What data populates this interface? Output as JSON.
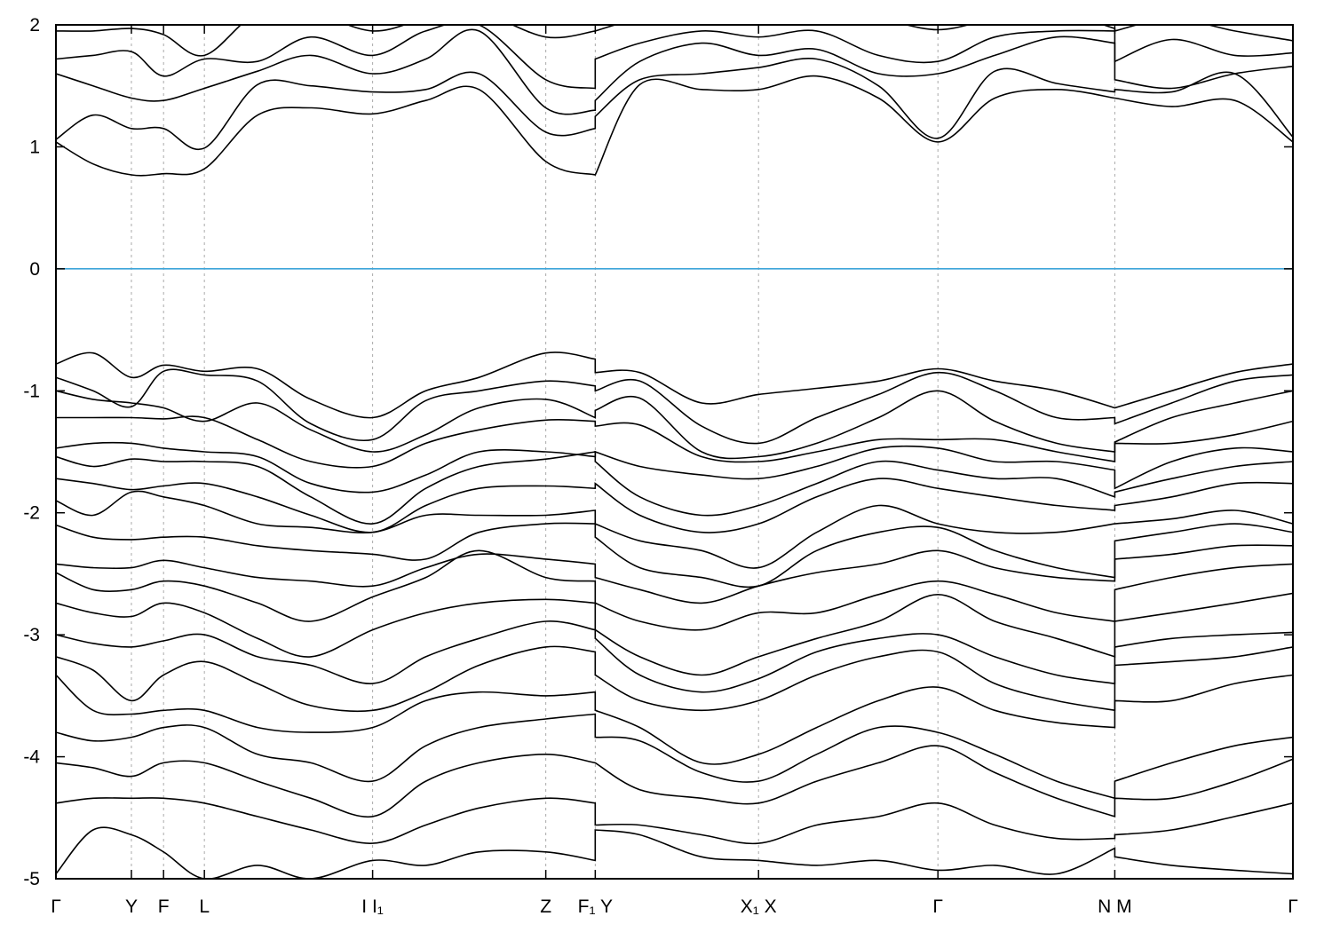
{
  "chart_data": {
    "type": "line",
    "title": "",
    "xlabel": "",
    "ylabel": "",
    "xlim": [
      0,
      1
    ],
    "ylim": [
      -5,
      2
    ],
    "yticks": [
      2,
      1,
      0,
      -1,
      -2,
      -3,
      -4,
      -5
    ],
    "ytick_labels": [
      "2",
      "1",
      "0",
      "-1",
      "-2",
      "-3",
      "-4",
      "-5"
    ],
    "xticks": [
      {
        "k": 0,
        "label": "Γ"
      },
      {
        "k": 0.061,
        "label": "Y"
      },
      {
        "k": 0.087,
        "label": "F"
      },
      {
        "k": 0.12,
        "label": "L"
      },
      {
        "k": 0.256,
        "label": "I I₁"
      },
      {
        "k": 0.396,
        "label": "Z"
      },
      {
        "k": 0.436,
        "label": "F₁ Y"
      },
      {
        "k": 0.568,
        "label": "X₁ X"
      },
      {
        "k": 0.713,
        "label": "Γ"
      },
      {
        "k": 0.856,
        "label": "N M"
      },
      {
        "k": 1,
        "label": "Γ"
      }
    ],
    "grid": "vertical dashed at high-symmetry points",
    "fermi_level": 0,
    "fermi_color": "#3da5d9",
    "band_color": "#000000",
    "k": [
      0,
      0.03,
      0.061,
      0.087,
      0.12,
      0.163,
      0.206,
      0.256,
      0.299,
      0.342,
      0.396,
      0.436,
      0.436,
      0.472,
      0.522,
      0.568,
      0.615,
      0.665,
      0.713,
      0.759,
      0.809,
      0.856,
      0.856,
      0.902,
      0.953,
      1
    ],
    "bands": [
      {
        "E": [
          1.04,
          0.86,
          0.77,
          0.78,
          0.82,
          1.26,
          1.32,
          1.27,
          1.38,
          1.47,
          0.88,
          0.77,
          0.77,
          1.51,
          1.47,
          1.47,
          1.58,
          1.4,
          1.04,
          1.4,
          1.47,
          1.4,
          1.4,
          1.33,
          1.38,
          1.04
        ]
      },
      {
        "E": [
          1.06,
          1.26,
          1.15,
          1.15,
          0.99,
          1.51,
          1.5,
          1.45,
          1.47,
          1.6,
          1.12,
          1.15,
          1.25,
          1.55,
          1.6,
          1.65,
          1.72,
          1.5,
          1.07,
          1.62,
          1.52,
          1.45,
          1.47,
          1.45,
          1.6,
          1.08
        ]
      },
      {
        "E": [
          1.6,
          1.5,
          1.4,
          1.38,
          1.48,
          1.62,
          1.75,
          1.6,
          1.72,
          1.95,
          1.32,
          1.3,
          1.38,
          1.7,
          1.85,
          1.75,
          1.8,
          1.6,
          1.6,
          1.75,
          1.9,
          1.85,
          1.55,
          1.48,
          1.6,
          1.66
        ]
      },
      {
        "E": [
          1.72,
          1.75,
          1.78,
          1.58,
          1.72,
          1.7,
          1.9,
          1.75,
          1.95,
          2.0,
          1.55,
          1.48,
          1.72,
          1.85,
          1.95,
          1.9,
          1.95,
          1.75,
          1.7,
          1.9,
          1.95,
          1.95,
          1.7,
          1.88,
          1.75,
          1.77
        ]
      },
      {
        "E": [
          1.95,
          1.95,
          1.97,
          1.92,
          1.75,
          2.1,
          2.1,
          1.95,
          2.05,
          2.1,
          1.9,
          1.95,
          1.95,
          2.05,
          2.1,
          2.1,
          2.1,
          2.05,
          1.96,
          2.05,
          2.1,
          1.97,
          1.95,
          2.05,
          1.95,
          1.87
        ]
      },
      {
        "E": [
          -0.78,
          -0.69,
          -0.89,
          -0.79,
          -0.84,
          -0.82,
          -1.07,
          -1.22,
          -1.0,
          -0.89,
          -0.69,
          -0.74,
          -0.85,
          -0.85,
          -1.1,
          -1.03,
          -0.98,
          -0.92,
          -0.82,
          -0.92,
          -1.0,
          -1.14,
          -1.14,
          -1.0,
          -0.85,
          -0.78
        ]
      },
      {
        "E": [
          -0.89,
          -1.0,
          -1.13,
          -0.84,
          -0.87,
          -0.92,
          -1.27,
          -1.4,
          -1.08,
          -1.0,
          -0.92,
          -0.96,
          -1.0,
          -0.92,
          -1.29,
          -1.43,
          -1.22,
          -1.03,
          -0.85,
          -1.0,
          -1.22,
          -1.22,
          -1.27,
          -1.1,
          -0.92,
          -0.87
        ]
      },
      {
        "E": [
          -1.0,
          -1.07,
          -1.1,
          -1.14,
          -1.25,
          -1.1,
          -1.32,
          -1.5,
          -1.36,
          -1.14,
          -1.07,
          -1.22,
          -1.16,
          -1.06,
          -1.5,
          -1.54,
          -1.43,
          -1.22,
          -1.0,
          -1.25,
          -1.43,
          -1.5,
          -1.42,
          -1.22,
          -1.1,
          -1.0
        ]
      },
      {
        "E": [
          -1.22,
          -1.22,
          -1.22,
          -1.23,
          -1.22,
          -1.4,
          -1.58,
          -1.62,
          -1.43,
          -1.32,
          -1.24,
          -1.25,
          -1.29,
          -1.28,
          -1.54,
          -1.58,
          -1.5,
          -1.4,
          -1.4,
          -1.4,
          -1.5,
          -1.58,
          -1.43,
          -1.43,
          -1.36,
          -1.25
        ]
      },
      {
        "E": [
          -1.47,
          -1.43,
          -1.43,
          -1.47,
          -1.5,
          -1.54,
          -1.76,
          -1.83,
          -1.69,
          -1.5,
          -1.5,
          -1.54,
          -1.5,
          -1.62,
          -1.69,
          -1.72,
          -1.62,
          -1.47,
          -1.47,
          -1.58,
          -1.58,
          -1.65,
          -1.8,
          -1.58,
          -1.47,
          -1.5
        ]
      },
      {
        "E": [
          -1.54,
          -1.62,
          -1.56,
          -1.58,
          -1.58,
          -1.62,
          -1.87,
          -2.09,
          -1.8,
          -1.62,
          -1.56,
          -1.5,
          -1.58,
          -1.87,
          -2.02,
          -1.94,
          -1.76,
          -1.58,
          -1.65,
          -1.72,
          -1.72,
          -1.87,
          -1.83,
          -1.72,
          -1.62,
          -1.58
        ]
      },
      {
        "E": [
          -1.72,
          -1.76,
          -1.81,
          -1.78,
          -1.76,
          -1.87,
          -2.02,
          -2.16,
          -1.94,
          -1.8,
          -1.78,
          -1.8,
          -1.76,
          -2.02,
          -2.16,
          -2.09,
          -1.87,
          -1.72,
          -1.8,
          -1.87,
          -1.94,
          -1.98,
          -1.94,
          -1.87,
          -1.76,
          -1.76
        ]
      },
      {
        "E": [
          -1.9,
          -2.02,
          -1.83,
          -1.87,
          -1.94,
          -2.09,
          -2.12,
          -2.16,
          -2.02,
          -2.02,
          -2.02,
          -1.98,
          -2.09,
          -2.23,
          -2.31,
          -2.45,
          -2.16,
          -1.94,
          -2.09,
          -2.16,
          -2.16,
          -2.09,
          -2.09,
          -2.05,
          -1.98,
          -2.09
        ]
      },
      {
        "E": [
          -2.1,
          -2.2,
          -2.22,
          -2.2,
          -2.2,
          -2.27,
          -2.31,
          -2.34,
          -2.38,
          -2.16,
          -2.09,
          -2.09,
          -2.2,
          -2.45,
          -2.53,
          -2.6,
          -2.31,
          -2.16,
          -2.12,
          -2.31,
          -2.45,
          -2.53,
          -2.23,
          -2.16,
          -2.09,
          -2.16
        ]
      },
      {
        "E": [
          -2.42,
          -2.45,
          -2.45,
          -2.39,
          -2.45,
          -2.53,
          -2.56,
          -2.6,
          -2.45,
          -2.34,
          -2.38,
          -2.42,
          -2.53,
          -2.63,
          -2.74,
          -2.6,
          -2.49,
          -2.42,
          -2.31,
          -2.45,
          -2.53,
          -2.56,
          -2.38,
          -2.34,
          -2.27,
          -2.27
        ]
      },
      {
        "E": [
          -2.49,
          -2.63,
          -2.63,
          -2.56,
          -2.6,
          -2.74,
          -2.89,
          -2.69,
          -2.53,
          -2.31,
          -2.53,
          -2.56,
          -2.74,
          -2.89,
          -2.96,
          -2.82,
          -2.82,
          -2.67,
          -2.56,
          -2.67,
          -2.82,
          -2.89,
          -2.63,
          -2.53,
          -2.45,
          -2.42
        ]
      },
      {
        "E": [
          -2.74,
          -2.82,
          -2.85,
          -2.74,
          -2.82,
          -3.03,
          -3.18,
          -2.96,
          -2.82,
          -2.74,
          -2.71,
          -2.74,
          -2.96,
          -3.18,
          -3.33,
          -3.18,
          -3.03,
          -2.89,
          -2.67,
          -2.89,
          -3.03,
          -3.18,
          -2.89,
          -2.82,
          -2.74,
          -2.66
        ]
      },
      {
        "E": [
          -3.0,
          -3.07,
          -3.1,
          -3.05,
          -3.0,
          -3.18,
          -3.25,
          -3.4,
          -3.18,
          -3.03,
          -2.89,
          -2.96,
          -3.03,
          -3.33,
          -3.47,
          -3.36,
          -3.14,
          -3.03,
          -3.0,
          -3.18,
          -3.33,
          -3.4,
          -3.1,
          -3.03,
          -3.0,
          -2.98
        ]
      },
      {
        "E": [
          -3.18,
          -3.29,
          -3.54,
          -3.33,
          -3.22,
          -3.4,
          -3.58,
          -3.62,
          -3.47,
          -3.25,
          -3.1,
          -3.14,
          -3.33,
          -3.54,
          -3.62,
          -3.54,
          -3.33,
          -3.18,
          -3.14,
          -3.4,
          -3.54,
          -3.62,
          -3.25,
          -3.22,
          -3.18,
          -3.1
        ]
      },
      {
        "E": [
          -3.33,
          -3.62,
          -3.65,
          -3.62,
          -3.62,
          -3.76,
          -3.8,
          -3.76,
          -3.54,
          -3.47,
          -3.5,
          -3.47,
          -3.62,
          -3.76,
          -4.05,
          -3.98,
          -3.76,
          -3.54,
          -3.43,
          -3.62,
          -3.72,
          -3.76,
          -3.54,
          -3.54,
          -3.4,
          -3.33
        ]
      },
      {
        "E": [
          -3.8,
          -3.87,
          -3.84,
          -3.76,
          -3.76,
          -3.98,
          -4.05,
          -4.2,
          -3.91,
          -3.76,
          -3.69,
          -3.65,
          -3.84,
          -3.87,
          -4.13,
          -4.2,
          -3.98,
          -3.76,
          -3.8,
          -3.98,
          -4.2,
          -4.34,
          -4.2,
          -4.05,
          -3.91,
          -3.84
        ]
      },
      {
        "E": [
          -4.05,
          -4.09,
          -4.16,
          -4.05,
          -4.05,
          -4.2,
          -4.34,
          -4.49,
          -4.2,
          -4.05,
          -3.98,
          -4.05,
          -4.05,
          -4.27,
          -4.34,
          -4.38,
          -4.2,
          -4.05,
          -3.91,
          -4.13,
          -4.34,
          -4.49,
          -4.34,
          -4.34,
          -4.2,
          -4.02
        ]
      },
      {
        "E": [
          -4.38,
          -4.34,
          -4.34,
          -4.34,
          -4.38,
          -4.49,
          -4.6,
          -4.71,
          -4.56,
          -4.42,
          -4.34,
          -4.38,
          -4.56,
          -4.56,
          -4.64,
          -4.71,
          -4.56,
          -4.49,
          -4.38,
          -4.56,
          -4.67,
          -4.67,
          -4.64,
          -4.6,
          -4.49,
          -4.38
        ]
      },
      {
        "E": [
          -4.96,
          -4.6,
          -4.64,
          -4.78,
          -5.0,
          -4.89,
          -5.0,
          -4.85,
          -4.89,
          -4.78,
          -4.78,
          -4.85,
          -4.6,
          -4.64,
          -4.82,
          -4.85,
          -4.89,
          -4.85,
          -4.93,
          -4.89,
          -4.96,
          -4.75,
          -4.82,
          -4.89,
          -4.93,
          -4.96
        ]
      }
    ]
  }
}
